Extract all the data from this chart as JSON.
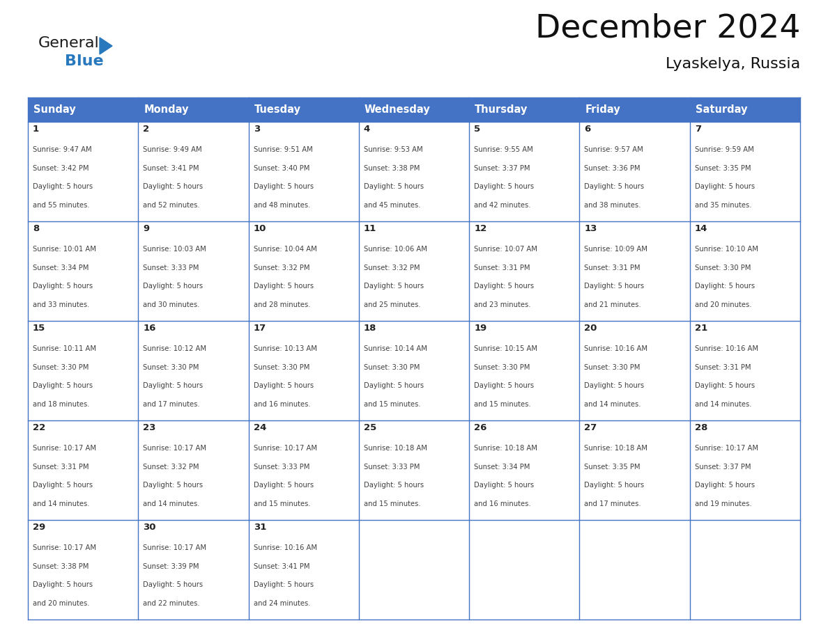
{
  "title": "December 2024",
  "subtitle": "Lyaskelya, Russia",
  "header_color": "#4472C4",
  "header_text_color": "#FFFFFF",
  "day_names": [
    "Sunday",
    "Monday",
    "Tuesday",
    "Wednesday",
    "Thursday",
    "Friday",
    "Saturday"
  ],
  "bg_color": "#FFFFFF",
  "grid_color": "#4472C4",
  "text_color": "#404040",
  "day_num_color": "#222222",
  "days": [
    {
      "day": 1,
      "col": 0,
      "row": 0,
      "sunrise": "9:47 AM",
      "sunset": "3:42 PM",
      "daylight_min": "and 55 minutes."
    },
    {
      "day": 2,
      "col": 1,
      "row": 0,
      "sunrise": "9:49 AM",
      "sunset": "3:41 PM",
      "daylight_min": "and 52 minutes."
    },
    {
      "day": 3,
      "col": 2,
      "row": 0,
      "sunrise": "9:51 AM",
      "sunset": "3:40 PM",
      "daylight_min": "and 48 minutes."
    },
    {
      "day": 4,
      "col": 3,
      "row": 0,
      "sunrise": "9:53 AM",
      "sunset": "3:38 PM",
      "daylight_min": "and 45 minutes."
    },
    {
      "day": 5,
      "col": 4,
      "row": 0,
      "sunrise": "9:55 AM",
      "sunset": "3:37 PM",
      "daylight_min": "and 42 minutes."
    },
    {
      "day": 6,
      "col": 5,
      "row": 0,
      "sunrise": "9:57 AM",
      "sunset": "3:36 PM",
      "daylight_min": "and 38 minutes."
    },
    {
      "day": 7,
      "col": 6,
      "row": 0,
      "sunrise": "9:59 AM",
      "sunset": "3:35 PM",
      "daylight_min": "and 35 minutes."
    },
    {
      "day": 8,
      "col": 0,
      "row": 1,
      "sunrise": "10:01 AM",
      "sunset": "3:34 PM",
      "daylight_min": "and 33 minutes."
    },
    {
      "day": 9,
      "col": 1,
      "row": 1,
      "sunrise": "10:03 AM",
      "sunset": "3:33 PM",
      "daylight_min": "and 30 minutes."
    },
    {
      "day": 10,
      "col": 2,
      "row": 1,
      "sunrise": "10:04 AM",
      "sunset": "3:32 PM",
      "daylight_min": "and 28 minutes."
    },
    {
      "day": 11,
      "col": 3,
      "row": 1,
      "sunrise": "10:06 AM",
      "sunset": "3:32 PM",
      "daylight_min": "and 25 minutes."
    },
    {
      "day": 12,
      "col": 4,
      "row": 1,
      "sunrise": "10:07 AM",
      "sunset": "3:31 PM",
      "daylight_min": "and 23 minutes."
    },
    {
      "day": 13,
      "col": 5,
      "row": 1,
      "sunrise": "10:09 AM",
      "sunset": "3:31 PM",
      "daylight_min": "and 21 minutes."
    },
    {
      "day": 14,
      "col": 6,
      "row": 1,
      "sunrise": "10:10 AM",
      "sunset": "3:30 PM",
      "daylight_min": "and 20 minutes."
    },
    {
      "day": 15,
      "col": 0,
      "row": 2,
      "sunrise": "10:11 AM",
      "sunset": "3:30 PM",
      "daylight_min": "and 18 minutes."
    },
    {
      "day": 16,
      "col": 1,
      "row": 2,
      "sunrise": "10:12 AM",
      "sunset": "3:30 PM",
      "daylight_min": "and 17 minutes."
    },
    {
      "day": 17,
      "col": 2,
      "row": 2,
      "sunrise": "10:13 AM",
      "sunset": "3:30 PM",
      "daylight_min": "and 16 minutes."
    },
    {
      "day": 18,
      "col": 3,
      "row": 2,
      "sunrise": "10:14 AM",
      "sunset": "3:30 PM",
      "daylight_min": "and 15 minutes."
    },
    {
      "day": 19,
      "col": 4,
      "row": 2,
      "sunrise": "10:15 AM",
      "sunset": "3:30 PM",
      "daylight_min": "and 15 minutes."
    },
    {
      "day": 20,
      "col": 5,
      "row": 2,
      "sunrise": "10:16 AM",
      "sunset": "3:30 PM",
      "daylight_min": "and 14 minutes."
    },
    {
      "day": 21,
      "col": 6,
      "row": 2,
      "sunrise": "10:16 AM",
      "sunset": "3:31 PM",
      "daylight_min": "and 14 minutes."
    },
    {
      "day": 22,
      "col": 0,
      "row": 3,
      "sunrise": "10:17 AM",
      "sunset": "3:31 PM",
      "daylight_min": "and 14 minutes."
    },
    {
      "day": 23,
      "col": 1,
      "row": 3,
      "sunrise": "10:17 AM",
      "sunset": "3:32 PM",
      "daylight_min": "and 14 minutes."
    },
    {
      "day": 24,
      "col": 2,
      "row": 3,
      "sunrise": "10:17 AM",
      "sunset": "3:33 PM",
      "daylight_min": "and 15 minutes."
    },
    {
      "day": 25,
      "col": 3,
      "row": 3,
      "sunrise": "10:18 AM",
      "sunset": "3:33 PM",
      "daylight_min": "and 15 minutes."
    },
    {
      "day": 26,
      "col": 4,
      "row": 3,
      "sunrise": "10:18 AM",
      "sunset": "3:34 PM",
      "daylight_min": "and 16 minutes."
    },
    {
      "day": 27,
      "col": 5,
      "row": 3,
      "sunrise": "10:18 AM",
      "sunset": "3:35 PM",
      "daylight_min": "and 17 minutes."
    },
    {
      "day": 28,
      "col": 6,
      "row": 3,
      "sunrise": "10:17 AM",
      "sunset": "3:37 PM",
      "daylight_min": "and 19 minutes."
    },
    {
      "day": 29,
      "col": 0,
      "row": 4,
      "sunrise": "10:17 AM",
      "sunset": "3:38 PM",
      "daylight_min": "and 20 minutes."
    },
    {
      "day": 30,
      "col": 1,
      "row": 4,
      "sunrise": "10:17 AM",
      "sunset": "3:39 PM",
      "daylight_min": "and 22 minutes."
    },
    {
      "day": 31,
      "col": 2,
      "row": 4,
      "sunrise": "10:16 AM",
      "sunset": "3:41 PM",
      "daylight_min": "and 24 minutes."
    }
  ],
  "num_rows": 5,
  "logo_general_color": "#1a1a1a",
  "logo_blue_color": "#2878be",
  "logo_triangle_color": "#2878be"
}
